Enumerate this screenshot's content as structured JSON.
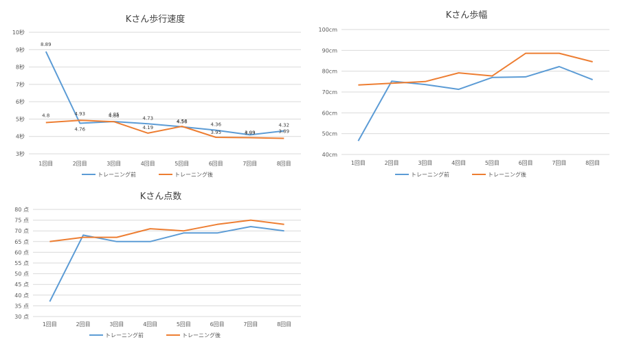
{
  "chart_data": [
    {
      "type": "line",
      "title": "Kさん歩行速度",
      "categories": [
        "1回目",
        "2回目",
        "3回目",
        "4回目",
        "5回目",
        "6回目",
        "7回目",
        "8回目"
      ],
      "y_ticks": [
        "3秒",
        "4秒",
        "5秒",
        "6秒",
        "7秒",
        "8秒",
        "9秒",
        "10秒"
      ],
      "ylim": [
        3,
        10
      ],
      "grid": true,
      "legend": "bottom",
      "data_labels": true,
      "series": [
        {
          "name": "トレーニング前",
          "color": "#5b9bd5",
          "values": [
            8.89,
            4.76,
            4.86,
            4.73,
            4.56,
            4.36,
            4.09,
            4.32
          ]
        },
        {
          "name": "トレーニング後",
          "color": "#ed7d31",
          "values": [
            4.8,
            4.93,
            4.85,
            4.19,
            4.58,
            3.95,
            3.93,
            3.89
          ]
        }
      ]
    },
    {
      "type": "line",
      "title": "Kさん歩幅",
      "categories": [
        "1回目",
        "2回目",
        "3回目",
        "4回目",
        "5回目",
        "6回目",
        "7回目",
        "8回目"
      ],
      "y_ticks": [
        "40cm",
        "50cm",
        "60cm",
        "70cm",
        "80cm",
        "90cm",
        "100cm"
      ],
      "ylim": [
        40,
        100
      ],
      "grid": true,
      "legend": "bottom",
      "data_labels": false,
      "series": [
        {
          "name": "トレーニング前",
          "color": "#5b9bd5",
          "values": [
            46.5,
            75.2,
            73.6,
            71.3,
            77.0,
            77.3,
            82.2,
            75.9
          ]
        },
        {
          "name": "トレーニング後",
          "color": "#ed7d31",
          "values": [
            73.4,
            74.2,
            75.0,
            79.2,
            77.7,
            88.6,
            88.6,
            84.5
          ]
        }
      ]
    },
    {
      "type": "line",
      "title": "Kさん点数",
      "categories": [
        "1回目",
        "2回目",
        "3回目",
        "4回目",
        "5回目",
        "6回目",
        "7回目",
        "8回目"
      ],
      "y_ticks": [
        "30 点",
        "35 点",
        "40 点",
        "45 点",
        "50 点",
        "55 点",
        "60 点",
        "65 点",
        "70 点",
        "75 点",
        "80 点"
      ],
      "ylim": [
        30,
        80
      ],
      "grid": true,
      "legend": "bottom",
      "data_labels": false,
      "series": [
        {
          "name": "トレーニング前",
          "color": "#5b9bd5",
          "values": [
            37,
            68,
            65,
            65,
            69,
            69,
            72,
            70
          ]
        },
        {
          "name": "トレーニング後",
          "color": "#ed7d31",
          "values": [
            65,
            67,
            67,
            71,
            70,
            73,
            75,
            73
          ]
        }
      ]
    }
  ]
}
